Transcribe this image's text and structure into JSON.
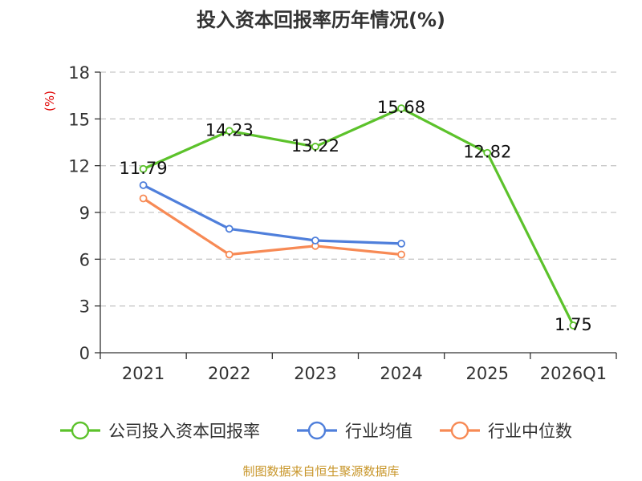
{
  "chart_data": {
    "type": "line",
    "title": "投入资本回报率历年情况(%)",
    "ylabel": "(%)",
    "xlabel": "",
    "categories": [
      "2021",
      "2022",
      "2023",
      "2024",
      "2025",
      "2026Q1"
    ],
    "ylim": [
      0,
      18
    ],
    "yticks": [
      0,
      3,
      6,
      9,
      12,
      15,
      18
    ],
    "grid": true,
    "legend_position": "bottom",
    "series": [
      {
        "name": "公司投入资本回报率",
        "color": "#5cc22b",
        "values": [
          11.79,
          14.23,
          13.22,
          15.68,
          12.82,
          1.75
        ],
        "labels": [
          "11.79",
          "14.23",
          "13.22",
          "15.68",
          "12.82",
          "1.75"
        ],
        "show_labels": true
      },
      {
        "name": "行业均值",
        "color": "#4f7fdb",
        "values": [
          10.75,
          7.95,
          7.2,
          7.0,
          null,
          null
        ],
        "show_labels": false
      },
      {
        "name": "行业中位数",
        "color": "#f78a55",
        "values": [
          9.9,
          6.3,
          6.85,
          6.3,
          null,
          null
        ],
        "show_labels": false
      }
    ],
    "source": "制图数据来自恒生聚源数据库"
  }
}
